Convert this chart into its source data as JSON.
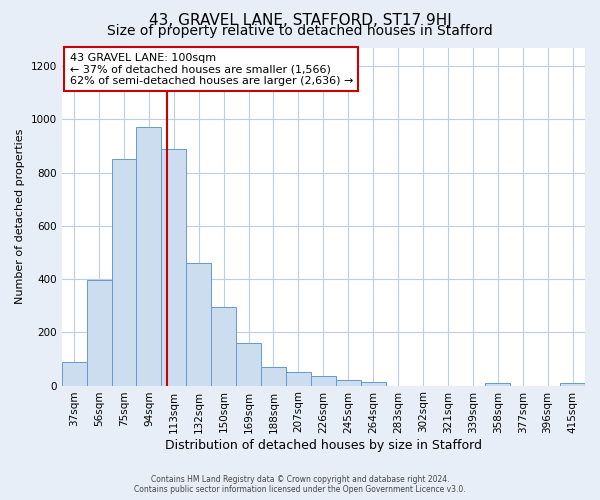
{
  "title": "43, GRAVEL LANE, STAFFORD, ST17 9HJ",
  "subtitle": "Size of property relative to detached houses in Stafford",
  "xlabel": "Distribution of detached houses by size in Stafford",
  "ylabel": "Number of detached properties",
  "bar_labels": [
    "37sqm",
    "56sqm",
    "75sqm",
    "94sqm",
    "113sqm",
    "132sqm",
    "150sqm",
    "169sqm",
    "188sqm",
    "207sqm",
    "226sqm",
    "245sqm",
    "264sqm",
    "283sqm",
    "302sqm",
    "321sqm",
    "339sqm",
    "358sqm",
    "377sqm",
    "396sqm",
    "415sqm"
  ],
  "bar_values": [
    90,
    395,
    850,
    970,
    890,
    460,
    295,
    160,
    70,
    52,
    35,
    20,
    15,
    0,
    0,
    0,
    0,
    10,
    0,
    0,
    10
  ],
  "bar_color": "#ccddf0",
  "bar_edge_color": "#6699cc",
  "vline_x": 3.72,
  "vline_color": "#cc0000",
  "annotation_text": "43 GRAVEL LANE: 100sqm\n← 37% of detached houses are smaller (1,566)\n62% of semi-detached houses are larger (2,636) →",
  "annotation_box_facecolor": "#ffffff",
  "annotation_box_edgecolor": "#cc0000",
  "ylim": [
    0,
    1270
  ],
  "yticks": [
    0,
    200,
    400,
    600,
    800,
    1000,
    1200
  ],
  "footer_line1": "Contains HM Land Registry data © Crown copyright and database right 2024.",
  "footer_line2": "Contains public sector information licensed under the Open Government Licence v3.0.",
  "fig_facecolor": "#e8eef8",
  "plot_facecolor": "#ffffff",
  "grid_color": "#c0cce0",
  "title_fontsize": 11,
  "subtitle_fontsize": 10,
  "xlabel_fontsize": 9,
  "ylabel_fontsize": 8,
  "tick_fontsize": 7.5,
  "annotation_fontsize": 8
}
